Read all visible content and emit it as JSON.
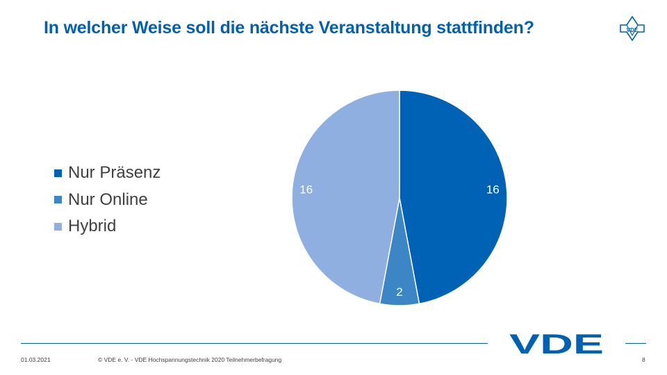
{
  "slide": {
    "title": "In welcher Weise soll die nächste Veranstaltung stattfinden?",
    "footer": {
      "date": "01.03.2021",
      "copyright": "© VDE e. V. - VDE Hochspannungstechnik 2020 Teilnehmerbefragung",
      "page_number": "8"
    },
    "logo_text": "VDE",
    "seal_text": "VDE"
  },
  "colors": {
    "title": "#0060b2",
    "brand": "#0060b2",
    "nur_praesenz": "#0062b4",
    "nur_online": "#3d86c6",
    "hybrid": "#8eafdf"
  },
  "chart_data": {
    "type": "pie",
    "title": "",
    "legend_position": "left",
    "categories": [
      "Nur Präsenz",
      "Nur Online",
      "Hybrid"
    ],
    "values": [
      16,
      2,
      16
    ],
    "data_labels": [
      "16",
      "2",
      "16"
    ],
    "colors": [
      "#0062b4",
      "#3d86c6",
      "#8eafdf"
    ],
    "start_angle": "12 o'clock",
    "direction": "clockwise"
  }
}
